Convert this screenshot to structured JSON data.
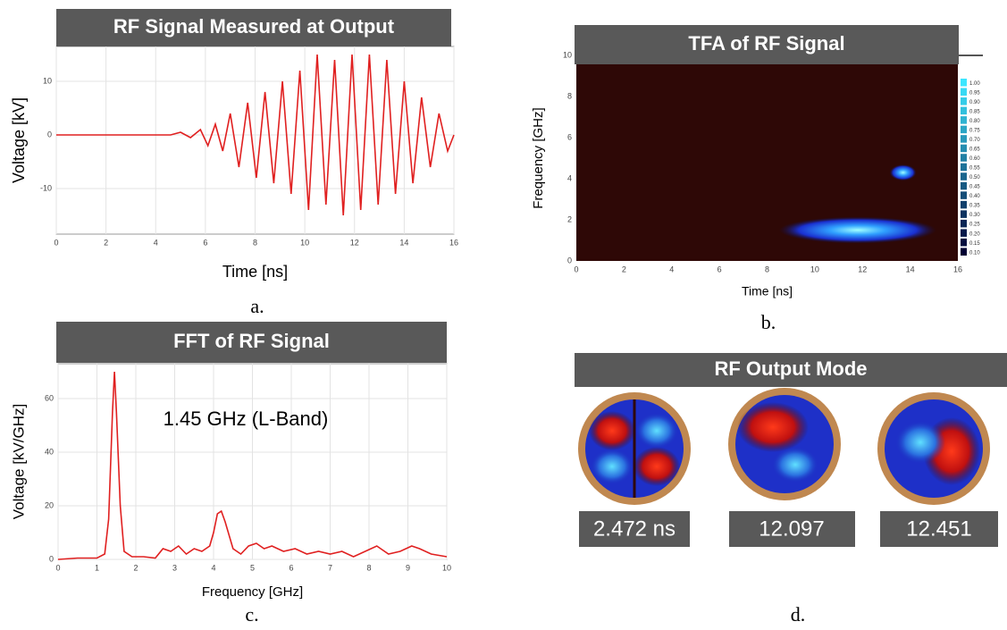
{
  "chart_data": [
    {
      "type": "line",
      "title": "RF Signal Measured at Output",
      "xlabel": "Time [ns]",
      "ylabel": "Voltage [kV]",
      "xlim": [
        0,
        16
      ],
      "ylim": [
        -18.5,
        16.5
      ],
      "xticks": [
        0,
        2,
        4,
        6,
        8,
        10,
        12,
        14,
        16
      ],
      "yticks": [
        -10,
        0,
        10
      ],
      "grid": true,
      "series": [
        {
          "color": "#e02020",
          "x": [
            0,
            4.6,
            5.0,
            5.4,
            5.8,
            6.1,
            6.4,
            6.7,
            7.0,
            7.35,
            7.7,
            8.05,
            8.4,
            8.75,
            9.1,
            9.45,
            9.8,
            10.15,
            10.5,
            10.85,
            11.2,
            11.55,
            11.9,
            12.25,
            12.6,
            12.95,
            13.3,
            13.65,
            14.0,
            14.35,
            14.7,
            15.05,
            15.4,
            15.75,
            16.0
          ],
          "values": [
            0,
            0,
            0.5,
            -0.5,
            1,
            -2,
            2,
            -3,
            4,
            -6,
            6,
            -8,
            8,
            -9,
            10,
            -11,
            12,
            -14,
            15,
            -13,
            14,
            -15,
            15,
            -14,
            15,
            -13,
            14,
            -11,
            10,
            -9,
            7,
            -6,
            4,
            -3,
            0
          ]
        }
      ]
    },
    {
      "type": "heatmap",
      "title": "TFA of RF Signal",
      "xlabel": "Time [ns]",
      "ylabel": "Frequency [GHz]",
      "xlim": [
        0,
        16
      ],
      "ylim": [
        0,
        10
      ],
      "xticks": [
        0,
        2,
        4,
        6,
        8,
        10,
        12,
        14,
        16
      ],
      "yticks": [
        0,
        2,
        4,
        6,
        8,
        10
      ],
      "colorbar_ticks": [
        {
          "value": 1,
          "label": "1.00"
        },
        0.95,
        {
          "value": 0.9,
          "label": "0.90"
        },
        0.85,
        {
          "value": 0.8,
          "label": "0.80"
        },
        0.75,
        {
          "value": 0.7,
          "label": "0.70"
        },
        0.65,
        {
          "value": 0.6,
          "label": "0.60"
        },
        0.55,
        {
          "value": 0.5,
          "label": "0.50"
        },
        0.45,
        {
          "value": 0.4,
          "label": "0.40"
        },
        0.35,
        {
          "value": 0.3,
          "label": "0.30"
        },
        0.25,
        {
          "value": 0.2,
          "label": "0.20"
        },
        0.15,
        {
          "value": 0.1,
          "label": "0.10"
        }
      ]
    },
    {
      "type": "line",
      "title": "FFT of RF Signal",
      "xlabel": "Frequency [GHz]",
      "ylabel": "Voltage [kV/GHz]",
      "annotation": "1.45 GHz (L-Band)",
      "xlim": [
        0,
        10
      ],
      "ylim": [
        0,
        73
      ],
      "xticks": [
        0,
        1,
        2,
        3,
        4,
        5,
        6,
        7,
        8,
        9,
        10
      ],
      "yticks": [
        0,
        20,
        40,
        60
      ],
      "grid": true,
      "series": [
        {
          "color": "#e02020",
          "x": [
            0,
            0.5,
            1.0,
            1.2,
            1.3,
            1.4,
            1.45,
            1.5,
            1.6,
            1.7,
            1.9,
            2.2,
            2.5,
            2.7,
            2.9,
            3.1,
            3.3,
            3.5,
            3.7,
            3.9,
            4.0,
            4.1,
            4.2,
            4.3,
            4.5,
            4.7,
            4.9,
            5.1,
            5.3,
            5.5,
            5.8,
            6.1,
            6.4,
            6.7,
            7.0,
            7.3,
            7.6,
            7.9,
            8.2,
            8.5,
            8.8,
            9.1,
            9.3,
            9.6,
            10
          ],
          "values": [
            0,
            0.5,
            0.5,
            2,
            15,
            55,
            70,
            55,
            20,
            3,
            1,
            1,
            0.5,
            4,
            3,
            5,
            2,
            4,
            3,
            5,
            10,
            17,
            18,
            14,
            4,
            2,
            5,
            6,
            4,
            5,
            3,
            4,
            2,
            3,
            2,
            3,
            1,
            3,
            5,
            2,
            3,
            5,
            4,
            2,
            1
          ]
        }
      ]
    }
  ],
  "mode_panel": {
    "title": "RF Output Mode",
    "labels": [
      "2.472 ns",
      "12.097",
      "12.451"
    ]
  },
  "captions": [
    "a.",
    "b.",
    "c.",
    "d."
  ]
}
